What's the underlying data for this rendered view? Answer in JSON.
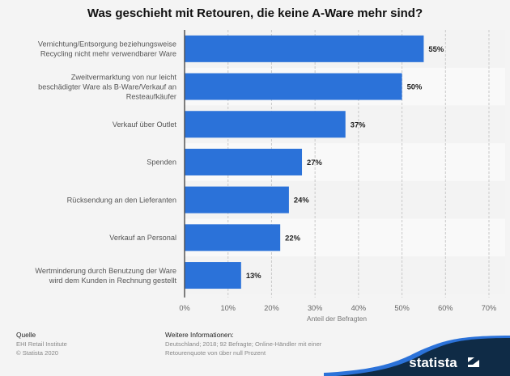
{
  "chart_data": {
    "type": "bar",
    "orientation": "horizontal",
    "title": "Was geschieht mit Retouren, die keine A-Ware mehr sind?",
    "categories": [
      [
        "Vernichtung/Entsorgung beziehungsweise",
        "Recycling nicht mehr verwendbarer Ware"
      ],
      [
        "Zweitvermarktung von nur leicht",
        "beschädigter Ware als B-Ware/Verkauf an",
        "Resteaufkäufer"
      ],
      [
        "Verkauf über Outlet"
      ],
      [
        "Spenden"
      ],
      [
        "Rücksendung an den Lieferanten"
      ],
      [
        "Verkauf an Personal"
      ],
      [
        "Wertminderung durch Benutzung der Ware",
        "wird dem Kunden in Rechnung gestellt"
      ]
    ],
    "values": [
      55,
      50,
      37,
      27,
      24,
      22,
      13
    ],
    "value_labels": [
      "55%",
      "50%",
      "37%",
      "27%",
      "24%",
      "22%",
      "13%"
    ],
    "xlabel": "Anteil der Befragten",
    "ylabel": "",
    "xlim": [
      0,
      70
    ],
    "xticks": [
      0,
      10,
      20,
      30,
      40,
      50,
      60,
      70
    ],
    "xtick_labels": [
      "0%",
      "10%",
      "20%",
      "30%",
      "40%",
      "50%",
      "60%",
      "70%"
    ],
    "grid": true,
    "bar_color": "#2b72d9"
  },
  "footer": {
    "source_heading": "Quelle",
    "source_lines": [
      "EHI Retail Institute",
      "© Statista 2020"
    ],
    "info_heading": "Weitere Informationen:",
    "info_lines": [
      "Deutschland; 2018; 92 Befragte; Online-Händler mit einer",
      "Retourenquote von über null Prozent"
    ],
    "brand": "statista"
  }
}
